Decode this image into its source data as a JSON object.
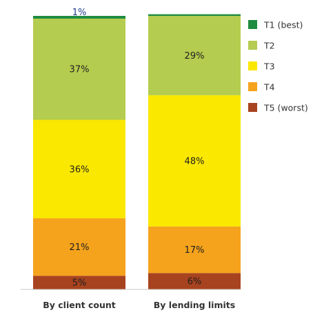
{
  "chart_data": {
    "type": "bar",
    "stacked": true,
    "title": "",
    "xlabel": "",
    "ylabel": "",
    "ylim": [
      0,
      100
    ],
    "grid": false,
    "legend_position": "top-right",
    "categories": [
      "By client count",
      "By lending limits"
    ],
    "series": [
      {
        "name": "T5 (worst)",
        "color": "#a8431f",
        "values": [
          5,
          6
        ],
        "labels": [
          "5%",
          "6%"
        ]
      },
      {
        "name": "T4",
        "color": "#f5a31c",
        "values": [
          21,
          17
        ],
        "labels": [
          "21%",
          "17%"
        ]
      },
      {
        "name": "T3",
        "color": "#fae800",
        "values": [
          36,
          48
        ],
        "labels": [
          "36%",
          "48%"
        ]
      },
      {
        "name": "T2",
        "color": "#b4cc4f",
        "values": [
          37,
          29
        ],
        "labels": [
          "37%",
          "29%"
        ]
      },
      {
        "name": "T1 (best)",
        "color": "#1e8b40",
        "values": [
          1,
          0.6
        ],
        "labels": [
          "1%",
          ""
        ]
      }
    ],
    "legend_order": [
      "T1 (best)",
      "T2",
      "T3",
      "T4",
      "T5 (worst)"
    ]
  }
}
